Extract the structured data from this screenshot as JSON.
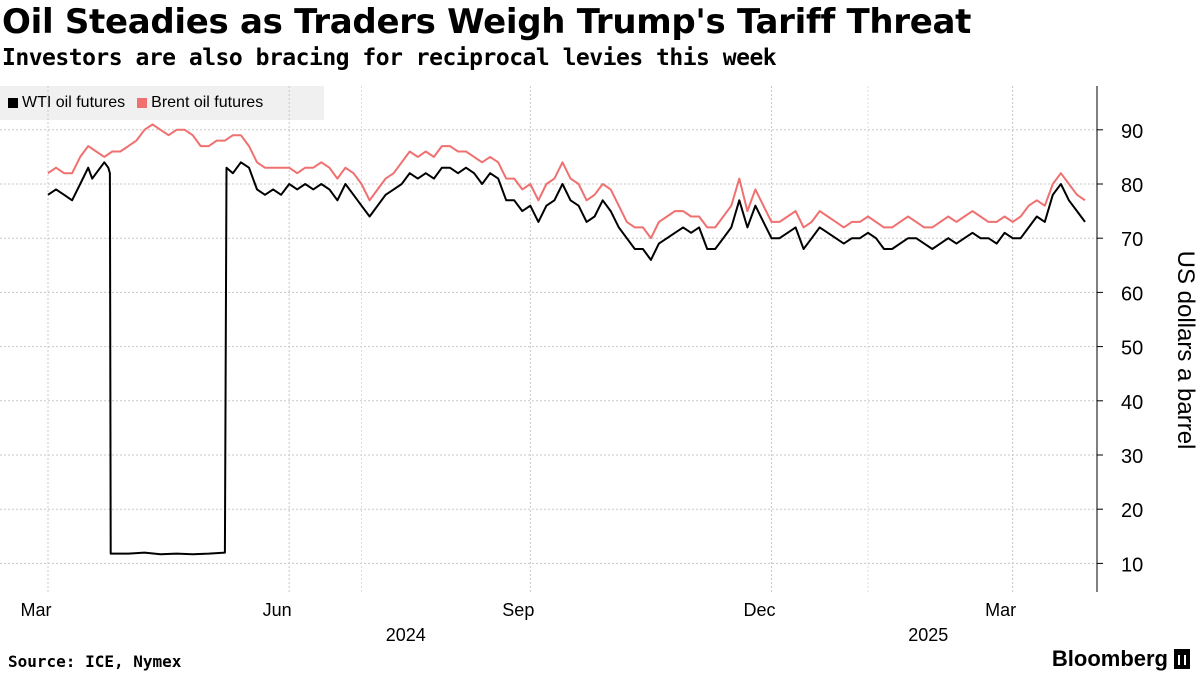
{
  "header": {
    "title": "Oil Steadies as Traders Weigh Trump's Tariff Threat",
    "subtitle": "Investors are also bracing for reciprocal levies this week"
  },
  "legend": {
    "items": [
      {
        "label": "WTI oil futures",
        "color": "#000000"
      },
      {
        "label": "Brent oil futures",
        "color": "#f07070"
      }
    ]
  },
  "footer": {
    "source": "Source: ICE, Nymex",
    "brand": "Bloomberg"
  },
  "chart_data": {
    "type": "line",
    "title": "Oil Steadies as Traders Weigh Trump's Tariff Threat",
    "subtitle": "Investors are also bracing for reciprocal levies this week",
    "ylabel": "US dollars a barrel",
    "ylim": [
      5,
      100
    ],
    "yticks": [
      10,
      20,
      30,
      40,
      50,
      60,
      70,
      80,
      90
    ],
    "grid": true,
    "x_range_months": [
      0,
      12.9
    ],
    "x_month_ticks": [
      {
        "m": 0,
        "label": "Mar"
      },
      {
        "m": 3,
        "label": "Jun"
      },
      {
        "m": 6,
        "label": "Sep"
      },
      {
        "m": 9,
        "label": "Dec"
      },
      {
        "m": 12,
        "label": "Mar"
      }
    ],
    "x_year_ticks": [
      {
        "m": 4.45,
        "label": "2024"
      },
      {
        "m": 10.95,
        "label": "2025"
      }
    ],
    "series": [
      {
        "name": "WTI oil futures",
        "color": "#000000",
        "points": [
          [
            0.0,
            78
          ],
          [
            0.1,
            79
          ],
          [
            0.2,
            78
          ],
          [
            0.3,
            77
          ],
          [
            0.4,
            80
          ],
          [
            0.5,
            83
          ],
          [
            0.55,
            81
          ],
          [
            0.6,
            82
          ],
          [
            0.7,
            84
          ],
          [
            0.75,
            83
          ],
          [
            0.77,
            82
          ],
          [
            0.78,
            11.8
          ],
          [
            1.0,
            11.8
          ],
          [
            1.2,
            12.0
          ],
          [
            1.4,
            11.7
          ],
          [
            1.6,
            11.8
          ],
          [
            1.8,
            11.7
          ],
          [
            2.0,
            11.8
          ],
          [
            2.2,
            12.0
          ],
          [
            2.22,
            83
          ],
          [
            2.3,
            82
          ],
          [
            2.4,
            84
          ],
          [
            2.5,
            83
          ],
          [
            2.6,
            79
          ],
          [
            2.7,
            78
          ],
          [
            2.8,
            79
          ],
          [
            2.9,
            78
          ],
          [
            3.0,
            80
          ],
          [
            3.1,
            79
          ],
          [
            3.2,
            80
          ],
          [
            3.3,
            79
          ],
          [
            3.4,
            80
          ],
          [
            3.5,
            79
          ],
          [
            3.6,
            77
          ],
          [
            3.7,
            80
          ],
          [
            3.8,
            78
          ],
          [
            3.9,
            76
          ],
          [
            4.0,
            74
          ],
          [
            4.1,
            76
          ],
          [
            4.2,
            78
          ],
          [
            4.3,
            79
          ],
          [
            4.4,
            80
          ],
          [
            4.5,
            82
          ],
          [
            4.6,
            81
          ],
          [
            4.7,
            82
          ],
          [
            4.8,
            81
          ],
          [
            4.9,
            83
          ],
          [
            5.0,
            83
          ],
          [
            5.1,
            82
          ],
          [
            5.2,
            83
          ],
          [
            5.3,
            82
          ],
          [
            5.4,
            80
          ],
          [
            5.5,
            82
          ],
          [
            5.6,
            81
          ],
          [
            5.7,
            77
          ],
          [
            5.8,
            77
          ],
          [
            5.9,
            75
          ],
          [
            6.0,
            76
          ],
          [
            6.1,
            73
          ],
          [
            6.2,
            76
          ],
          [
            6.3,
            77
          ],
          [
            6.4,
            80
          ],
          [
            6.5,
            77
          ],
          [
            6.6,
            76
          ],
          [
            6.7,
            73
          ],
          [
            6.8,
            74
          ],
          [
            6.9,
            77
          ],
          [
            7.0,
            75
          ],
          [
            7.1,
            72
          ],
          [
            7.2,
            70
          ],
          [
            7.3,
            68
          ],
          [
            7.4,
            68
          ],
          [
            7.5,
            66
          ],
          [
            7.6,
            69
          ],
          [
            7.7,
            70
          ],
          [
            7.8,
            71
          ],
          [
            7.9,
            72
          ],
          [
            8.0,
            71
          ],
          [
            8.1,
            72
          ],
          [
            8.2,
            68
          ],
          [
            8.3,
            68
          ],
          [
            8.4,
            70
          ],
          [
            8.5,
            72
          ],
          [
            8.6,
            77
          ],
          [
            8.7,
            72
          ],
          [
            8.8,
            76
          ],
          [
            8.9,
            73
          ],
          [
            9.0,
            70
          ],
          [
            9.1,
            70
          ],
          [
            9.2,
            71
          ],
          [
            9.3,
            72
          ],
          [
            9.4,
            68
          ],
          [
            9.5,
            70
          ],
          [
            9.6,
            72
          ],
          [
            9.7,
            71
          ],
          [
            9.8,
            70
          ],
          [
            9.9,
            69
          ],
          [
            10.0,
            70
          ],
          [
            10.1,
            70
          ],
          [
            10.2,
            71
          ],
          [
            10.3,
            70
          ],
          [
            10.4,
            68
          ],
          [
            10.5,
            68
          ],
          [
            10.6,
            69
          ],
          [
            10.7,
            70
          ],
          [
            10.8,
            70
          ],
          [
            10.9,
            69
          ],
          [
            11.0,
            68
          ],
          [
            11.1,
            69
          ],
          [
            11.2,
            70
          ],
          [
            11.3,
            69
          ],
          [
            11.4,
            70
          ],
          [
            11.5,
            71
          ],
          [
            11.6,
            70
          ],
          [
            11.7,
            70
          ],
          [
            11.8,
            69
          ],
          [
            11.9,
            71
          ],
          [
            12.0,
            70
          ],
          [
            12.1,
            70
          ],
          [
            12.2,
            72
          ],
          [
            12.3,
            74
          ],
          [
            12.4,
            73
          ],
          [
            12.5,
            78
          ],
          [
            12.6,
            80
          ],
          [
            12.7,
            77
          ],
          [
            12.8,
            75
          ],
          [
            12.9,
            73
          ]
        ]
      },
      {
        "name": "Brent oil futures",
        "color": "#f07070",
        "points": [
          [
            0.0,
            82
          ],
          [
            0.1,
            83
          ],
          [
            0.2,
            82
          ],
          [
            0.3,
            82
          ],
          [
            0.4,
            85
          ],
          [
            0.5,
            87
          ],
          [
            0.6,
            86
          ],
          [
            0.7,
            85
          ],
          [
            0.8,
            86
          ],
          [
            0.9,
            86
          ],
          [
            1.0,
            87
          ],
          [
            1.1,
            88
          ],
          [
            1.2,
            90
          ],
          [
            1.3,
            91
          ],
          [
            1.4,
            90
          ],
          [
            1.5,
            89
          ],
          [
            1.6,
            90
          ],
          [
            1.7,
            90
          ],
          [
            1.8,
            89
          ],
          [
            1.9,
            87
          ],
          [
            2.0,
            87
          ],
          [
            2.1,
            88
          ],
          [
            2.2,
            88
          ],
          [
            2.3,
            89
          ],
          [
            2.4,
            89
          ],
          [
            2.5,
            87
          ],
          [
            2.6,
            84
          ],
          [
            2.7,
            83
          ],
          [
            2.8,
            83
          ],
          [
            2.9,
            83
          ],
          [
            3.0,
            83
          ],
          [
            3.1,
            82
          ],
          [
            3.2,
            83
          ],
          [
            3.3,
            83
          ],
          [
            3.4,
            84
          ],
          [
            3.5,
            83
          ],
          [
            3.6,
            81
          ],
          [
            3.7,
            83
          ],
          [
            3.8,
            82
          ],
          [
            3.9,
            80
          ],
          [
            4.0,
            77
          ],
          [
            4.1,
            79
          ],
          [
            4.2,
            81
          ],
          [
            4.3,
            82
          ],
          [
            4.4,
            84
          ],
          [
            4.5,
            86
          ],
          [
            4.6,
            85
          ],
          [
            4.7,
            86
          ],
          [
            4.8,
            85
          ],
          [
            4.9,
            87
          ],
          [
            5.0,
            87
          ],
          [
            5.1,
            86
          ],
          [
            5.2,
            86
          ],
          [
            5.3,
            85
          ],
          [
            5.4,
            84
          ],
          [
            5.5,
            85
          ],
          [
            5.6,
            84
          ],
          [
            5.7,
            81
          ],
          [
            5.8,
            81
          ],
          [
            5.9,
            79
          ],
          [
            6.0,
            80
          ],
          [
            6.1,
            77
          ],
          [
            6.2,
            80
          ],
          [
            6.3,
            81
          ],
          [
            6.4,
            84
          ],
          [
            6.5,
            81
          ],
          [
            6.6,
            80
          ],
          [
            6.7,
            77
          ],
          [
            6.8,
            78
          ],
          [
            6.9,
            80
          ],
          [
            7.0,
            79
          ],
          [
            7.1,
            76
          ],
          [
            7.2,
            73
          ],
          [
            7.3,
            72
          ],
          [
            7.4,
            72
          ],
          [
            7.5,
            70
          ],
          [
            7.6,
            73
          ],
          [
            7.7,
            74
          ],
          [
            7.8,
            75
          ],
          [
            7.9,
            75
          ],
          [
            8.0,
            74
          ],
          [
            8.1,
            74
          ],
          [
            8.2,
            72
          ],
          [
            8.3,
            72
          ],
          [
            8.4,
            74
          ],
          [
            8.5,
            76
          ],
          [
            8.6,
            81
          ],
          [
            8.7,
            75
          ],
          [
            8.8,
            79
          ],
          [
            8.9,
            76
          ],
          [
            9.0,
            73
          ],
          [
            9.1,
            73
          ],
          [
            9.2,
            74
          ],
          [
            9.3,
            75
          ],
          [
            9.4,
            72
          ],
          [
            9.5,
            73
          ],
          [
            9.6,
            75
          ],
          [
            9.7,
            74
          ],
          [
            9.8,
            73
          ],
          [
            9.9,
            72
          ],
          [
            10.0,
            73
          ],
          [
            10.1,
            73
          ],
          [
            10.2,
            74
          ],
          [
            10.3,
            73
          ],
          [
            10.4,
            72
          ],
          [
            10.5,
            72
          ],
          [
            10.6,
            73
          ],
          [
            10.7,
            74
          ],
          [
            10.8,
            73
          ],
          [
            10.9,
            72
          ],
          [
            11.0,
            72
          ],
          [
            11.1,
            73
          ],
          [
            11.2,
            74
          ],
          [
            11.3,
            73
          ],
          [
            11.4,
            74
          ],
          [
            11.5,
            75
          ],
          [
            11.6,
            74
          ],
          [
            11.7,
            73
          ],
          [
            11.8,
            73
          ],
          [
            11.9,
            74
          ],
          [
            12.0,
            73
          ],
          [
            12.1,
            74
          ],
          [
            12.2,
            76
          ],
          [
            12.3,
            77
          ],
          [
            12.4,
            76
          ],
          [
            12.5,
            80
          ],
          [
            12.6,
            82
          ],
          [
            12.7,
            80
          ],
          [
            12.8,
            78
          ],
          [
            12.9,
            77
          ]
        ]
      }
    ]
  }
}
